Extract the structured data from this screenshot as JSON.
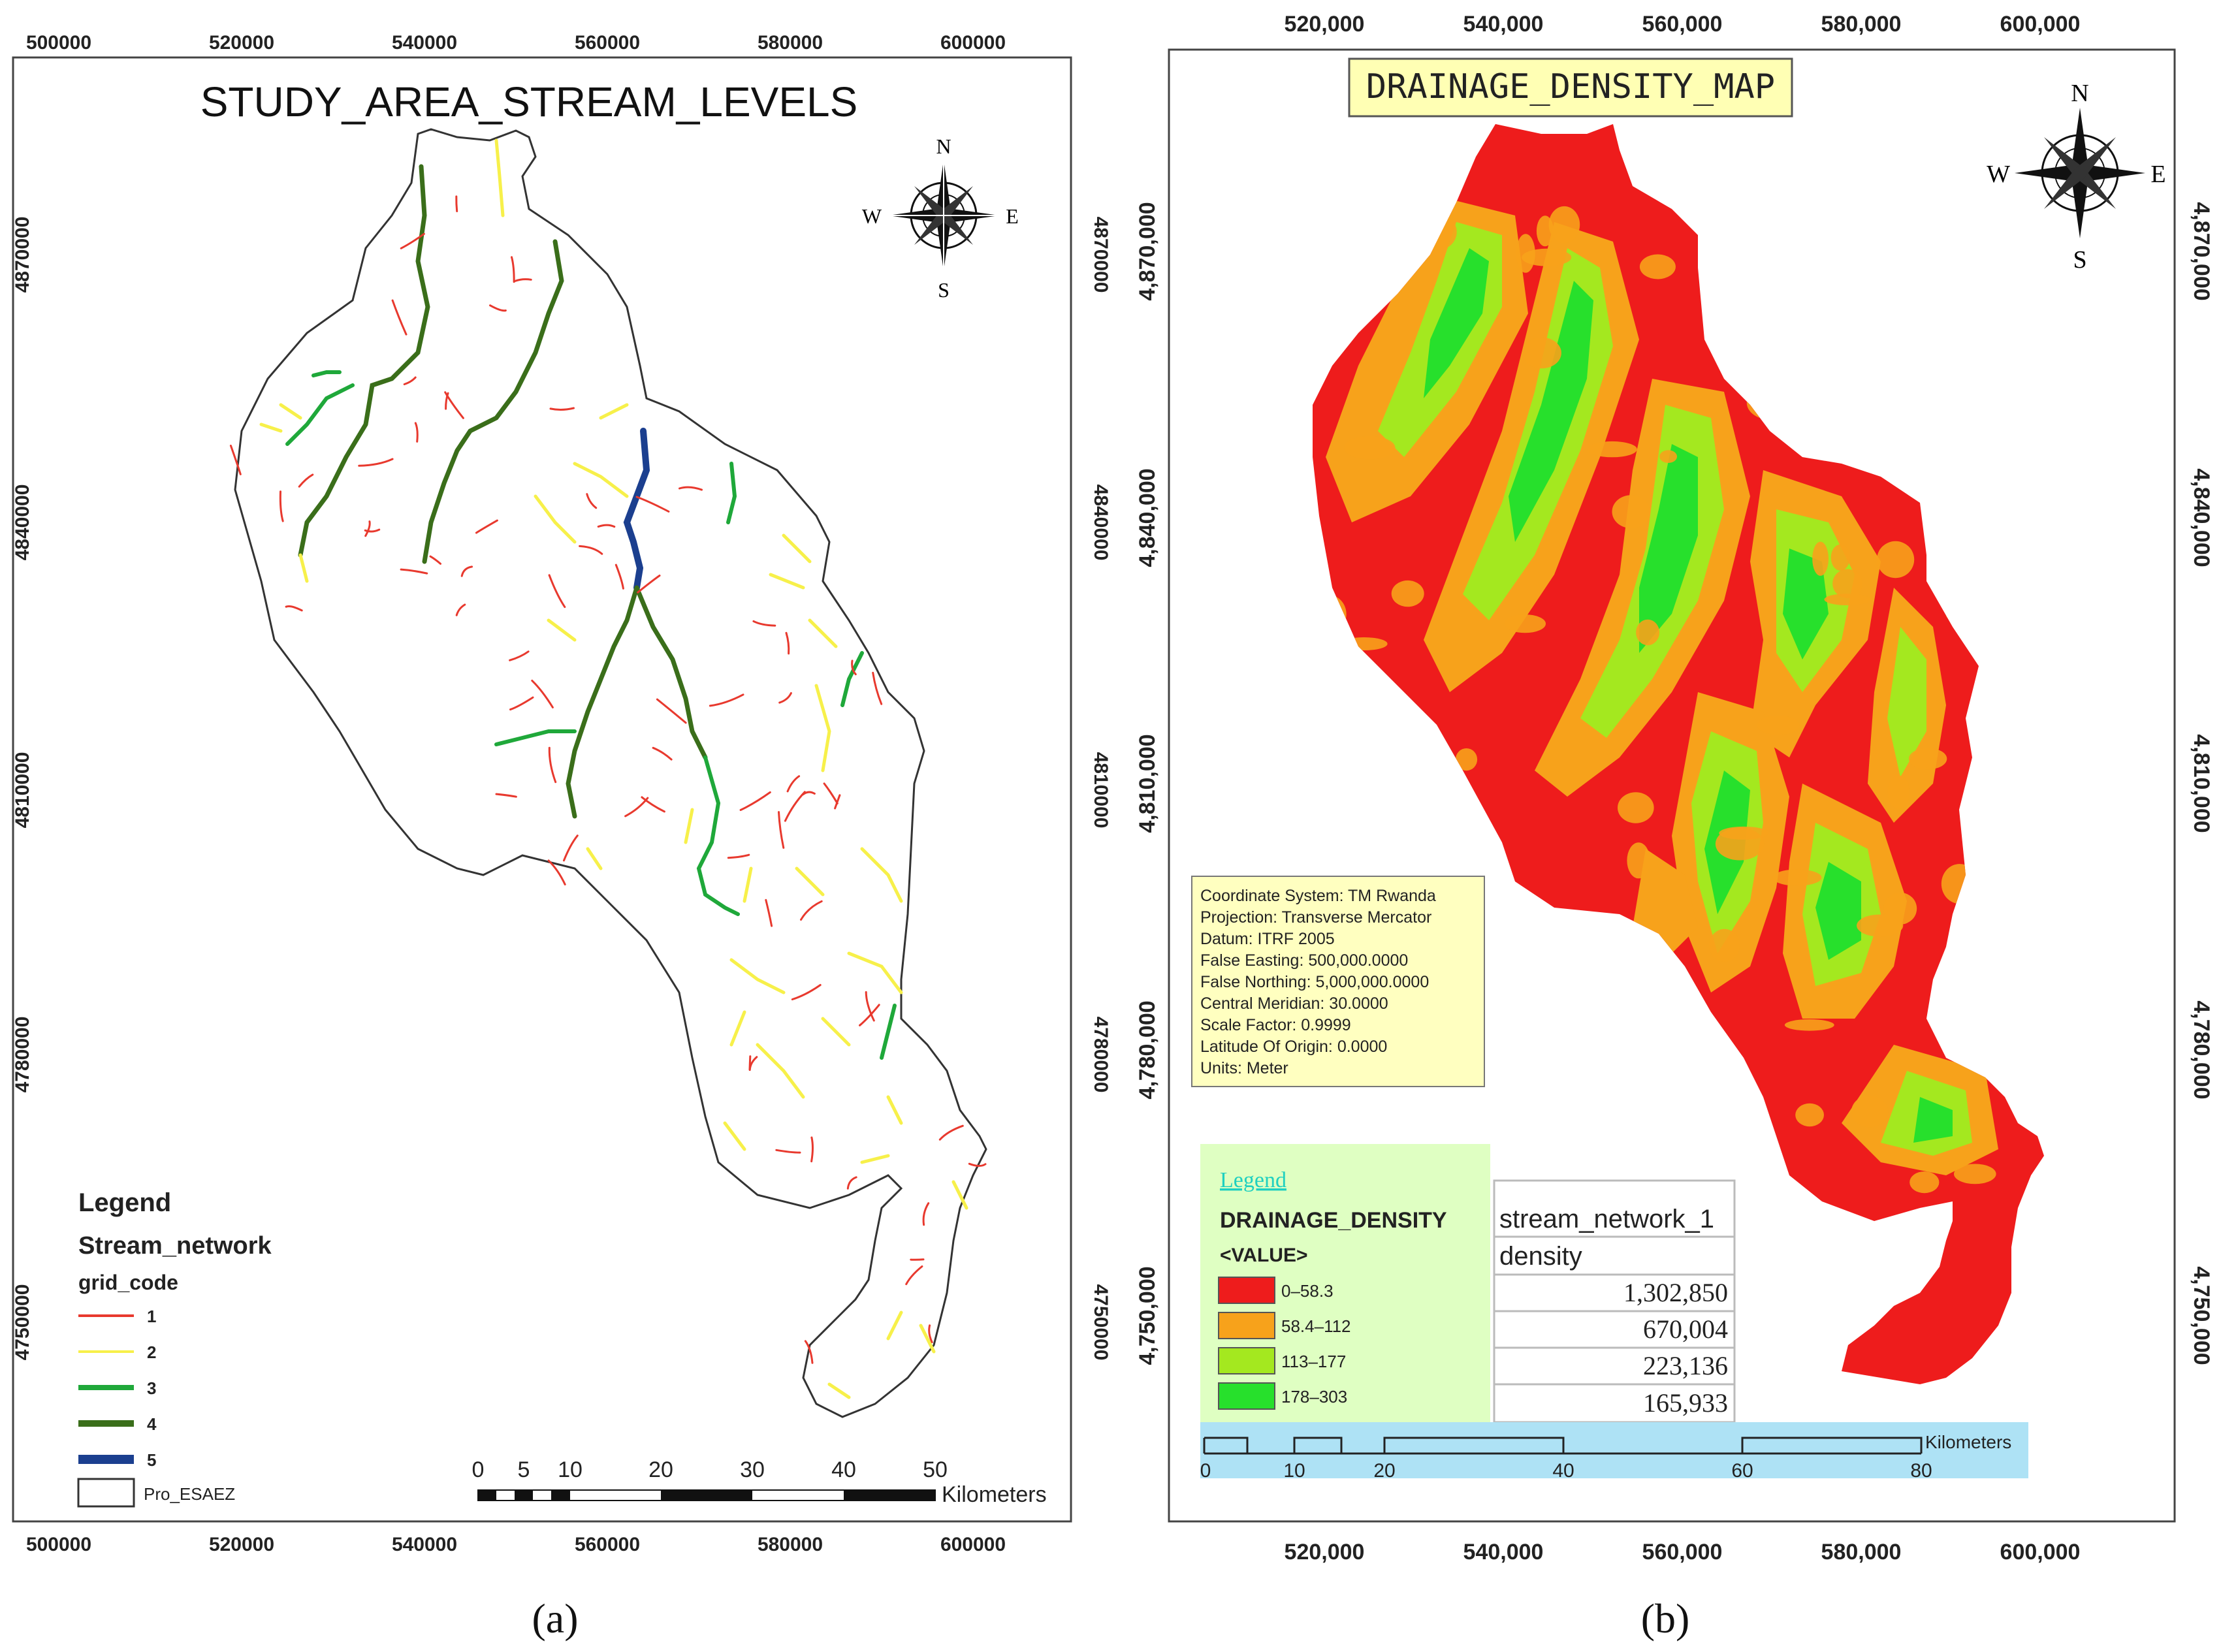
{
  "panel_a": {
    "caption": "(a)",
    "title": "STUDY_AREA_STREAM_LEVELS",
    "x_ticks": [
      "500000",
      "520000",
      "540000",
      "560000",
      "580000",
      "600000"
    ],
    "y_ticks": [
      "4870000",
      "4840000",
      "4810000",
      "4780000",
      "4750000"
    ],
    "compass": {
      "n": "N",
      "s": "S",
      "e": "E",
      "w": "W"
    },
    "legend": {
      "title": "Legend",
      "layer": "Stream_network",
      "field": "grid_code",
      "items": [
        {
          "label": "1",
          "color": "#e8392e"
        },
        {
          "label": "2",
          "color": "#f7f04a"
        },
        {
          "label": "3",
          "color": "#1fa83a"
        },
        {
          "label": "4",
          "color": "#3a6e1a"
        },
        {
          "label": "5",
          "color": "#1b3f8f"
        }
      ],
      "boundary": "Pro_ESAEZ"
    },
    "scalebar": {
      "ticks": [
        "0",
        "5",
        "10",
        "20",
        "30",
        "40",
        "50"
      ],
      "unit": "Kilometers"
    }
  },
  "panel_b": {
    "caption": "(b)",
    "title": "DRAINAGE_DENSITY_MAP",
    "x_ticks": [
      "520,000",
      "540,000",
      "560,000",
      "580,000",
      "600,000"
    ],
    "y_ticks": [
      "4,870,000",
      "4,840,000",
      "4,810,000",
      "4,780,000",
      "4,750,000"
    ],
    "compass": {
      "n": "N",
      "s": "S",
      "e": "E",
      "w": "W"
    },
    "coord_info": [
      "Coordinate System: TM Rwanda",
      "Projection: Transverse Mercator",
      "Datum: ITRF 2005",
      "False Easting: 500,000.0000",
      "False Northing: 5,000,000.0000",
      "Central Meridian: 30.0000",
      "Scale Factor: 0.9999",
      "Latitude Of Origin: 0.0000",
      "Units: Meter"
    ],
    "legend": {
      "title": "Legend",
      "layer": "DRAINAGE_DENSITY",
      "field": "<VALUE>",
      "items": [
        {
          "label": "0–58.3",
          "color": "#ee1c1c"
        },
        {
          "label": "58.4–112",
          "color": "#f7a21b"
        },
        {
          "label": "113–177",
          "color": "#a4e81f"
        },
        {
          "label": "178–303",
          "color": "#27e02c"
        }
      ]
    },
    "table": {
      "header": "stream_network_1",
      "subheader": "density",
      "values": [
        "1,302,850",
        "670,004",
        "223,136",
        "165,933"
      ]
    },
    "scalebar": {
      "ticks": [
        "0",
        "10",
        "20",
        "40",
        "60",
        "80"
      ],
      "unit": "Kilometers"
    }
  }
}
